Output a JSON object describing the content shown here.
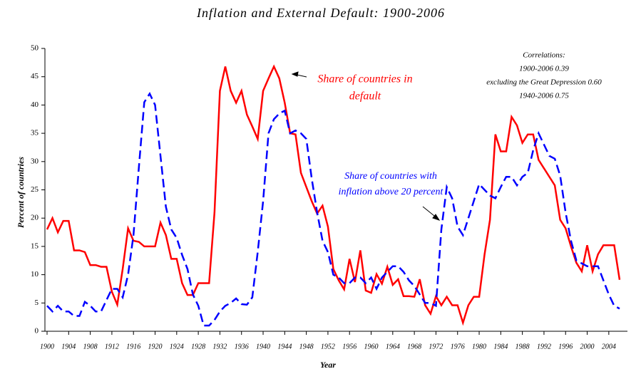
{
  "chart_data": {
    "type": "line",
    "title": "Inflation and External Default: 1900-2006",
    "x_label": "Year",
    "y_label": "Percent of countries",
    "x": [
      1900,
      1901,
      1902,
      1903,
      1904,
      1905,
      1906,
      1907,
      1908,
      1909,
      1910,
      1911,
      1912,
      1913,
      1914,
      1915,
      1916,
      1917,
      1918,
      1919,
      1920,
      1921,
      1922,
      1923,
      1924,
      1925,
      1926,
      1927,
      1928,
      1929,
      1930,
      1931,
      1932,
      1933,
      1934,
      1935,
      1936,
      1937,
      1938,
      1939,
      1940,
      1941,
      1942,
      1943,
      1944,
      1945,
      1946,
      1947,
      1948,
      1949,
      1950,
      1951,
      1952,
      1953,
      1954,
      1955,
      1956,
      1957,
      1958,
      1959,
      1960,
      1961,
      1962,
      1963,
      1964,
      1965,
      1966,
      1967,
      1968,
      1969,
      1970,
      1971,
      1972,
      1973,
      1974,
      1975,
      1976,
      1977,
      1978,
      1979,
      1980,
      1981,
      1982,
      1983,
      1984,
      1985,
      1986,
      1987,
      1988,
      1989,
      1990,
      1991,
      1992,
      1993,
      1994,
      1995,
      1996,
      1997,
      1998,
      1999,
      2000,
      2001,
      2002,
      2003,
      2004,
      2005,
      2006
    ],
    "series": [
      {
        "name": "Share of countries in default",
        "color": "#ff0000",
        "dash": "solid",
        "values": [
          18,
          20,
          17.5,
          19.5,
          19.5,
          14.3,
          14.3,
          14,
          11.7,
          11.7,
          11.4,
          11.4,
          7,
          4.7,
          11,
          18.2,
          16,
          15.8,
          15,
          15,
          15,
          19.2,
          17,
          12.8,
          12.8,
          8.5,
          6.4,
          6.4,
          8.5,
          8.5,
          8.5,
          21,
          42.5,
          46.8,
          42.5,
          40.4,
          42.5,
          38.3,
          36.2,
          34,
          42.5,
          44.7,
          46.8,
          44.7,
          40.4,
          35,
          34.8,
          28,
          25.5,
          23,
          20.8,
          22.2,
          18.5,
          11,
          9,
          7.4,
          12.8,
          8.7,
          14.3,
          7.2,
          6.8,
          10.1,
          8.4,
          11.4,
          8.2,
          9.2,
          6.2,
          6.2,
          6.1,
          9.2,
          4.6,
          3.1,
          6.2,
          4.6,
          6.1,
          4.6,
          4.6,
          1.5,
          4.6,
          6.1,
          6.1,
          13.6,
          19.7,
          34.8,
          31.8,
          31.8,
          37.9,
          36.4,
          33.3,
          34.8,
          34.8,
          30.3,
          28.8,
          27.3,
          25.8,
          19.7,
          18.2,
          15,
          12.1,
          10.6,
          15.2,
          10.6,
          13.6,
          15.2,
          15.2,
          15.2,
          9.1
        ]
      },
      {
        "name": "Share of countries with inflation above 20 percent",
        "color": "#0000ff",
        "dash": "dashed",
        "values": [
          4.5,
          3.5,
          4.5,
          3.5,
          3.5,
          2.7,
          2.7,
          5.2,
          4.5,
          3.5,
          3.5,
          5.5,
          7.5,
          7.5,
          6,
          10,
          17,
          29,
          40.5,
          42,
          40,
          31,
          22,
          18,
          16.5,
          13.5,
          11,
          6.5,
          4.5,
          1,
          1,
          2,
          3.5,
          4.5,
          5,
          5.8,
          4.8,
          4.7,
          6,
          14,
          23,
          35,
          37.5,
          38.5,
          39,
          35,
          35.5,
          35,
          34,
          27,
          21,
          16,
          14,
          10,
          9.5,
          8.5,
          8.5,
          9.5,
          9.5,
          8.5,
          9.5,
          7.5,
          9.5,
          10.5,
          11.5,
          11.5,
          10.5,
          9,
          8,
          6.5,
          5,
          5,
          4.5,
          18,
          25.5,
          23.5,
          18.5,
          17,
          20,
          23,
          26,
          25,
          24,
          23.5,
          25.5,
          27.3,
          27.3,
          25.8,
          27.3,
          28,
          32,
          35,
          33,
          31,
          30.5,
          27.5,
          21,
          16,
          12.5,
          12,
          11.5,
          11.5,
          11.5,
          9,
          6.5,
          4.5,
          4
        ]
      }
    ],
    "annotations": [
      {
        "lines": [
          "Share of countries in",
          "default"
        ],
        "color": "#ff0000"
      },
      {
        "lines": [
          "Share of countries with",
          "inflation above 20 percent"
        ],
        "color": "#0000ff"
      },
      {
        "lines": [
          "Correlations:",
          "1900-2006 0.39",
          "excluding the Great Depression 0.60",
          "1940-2006  0.75"
        ],
        "color": "#000000"
      }
    ],
    "xlim": [
      1900,
      2006
    ],
    "xticks": [
      1900,
      1904,
      1908,
      1912,
      1916,
      1920,
      1924,
      1928,
      1932,
      1936,
      1940,
      1944,
      1948,
      1952,
      1956,
      1960,
      1964,
      1968,
      1972,
      1976,
      1980,
      1984,
      1988,
      1992,
      1996,
      2000,
      2004
    ],
    "ylim": [
      0,
      50
    ],
    "yticks": [
      0,
      5,
      10,
      15,
      20,
      25,
      30,
      35,
      40,
      45,
      50
    ],
    "grid": false,
    "legend": false
  }
}
